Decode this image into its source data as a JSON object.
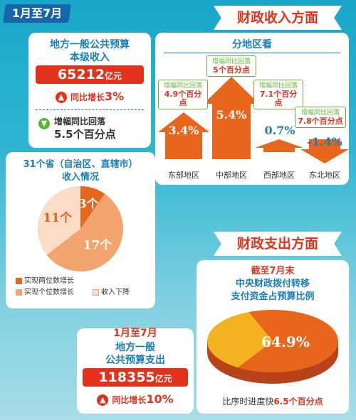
{
  "colors": {
    "accent_red": "#e3321b",
    "accent_blue": "#1a7fb8",
    "green": "#67b43a",
    "orange": "#e8661c"
  },
  "period_tag": "1月至7月",
  "revenue_ribbon": "财政收入方面",
  "local_revenue": {
    "title_line1": "地方一般公共预算",
    "title_line2": "本级收入",
    "amount": "65212",
    "unit": "亿元",
    "growth_label": "同比增长",
    "growth_value": "3%",
    "change_line1": "增幅同比回落",
    "change_line2": "5.5个百分点",
    "up_icon": "up-arrow-icon",
    "down_icon": "down-arrow-icon"
  },
  "regions": {
    "title": "分地区看",
    "items": [
      {
        "name": "东部地区",
        "value": "3.4%",
        "tag1": "增幅同比回落",
        "tag2": "4.9个百分点"
      },
      {
        "name": "中部地区",
        "value": "5.4%",
        "tag1": "增幅同比回落",
        "tag2": "5个百分点"
      },
      {
        "name": "西部地区",
        "value": "0.7%",
        "tag1": "增幅同比回落",
        "tag2": "7.1个百分点"
      },
      {
        "name": "东北地区",
        "value": "-1.4%",
        "tag1": "增幅同比回落",
        "tag2": "7.8个百分点"
      }
    ]
  },
  "provinces": {
    "title_line1": "31个省（自治区、直辖市）",
    "title_line2": "收入情况",
    "slices": [
      {
        "label": "3个",
        "value": 3,
        "color": "#e8661c"
      },
      {
        "label": "17个",
        "value": 17,
        "color": "#f2a56e"
      },
      {
        "label": "11个",
        "value": 11,
        "color": "#fbdcc6"
      }
    ],
    "legend": [
      {
        "label": "实现两位数增长",
        "color": "#e8661c"
      },
      {
        "label": "实现个位数增长",
        "color": "#f2a56e"
      },
      {
        "label": "收入下降",
        "color": "#fbdcc6"
      }
    ]
  },
  "expenditure_ribbon": "财政支出方面",
  "transfer": {
    "subtitle": "截至7月末",
    "title_line1": "中央财政拨付转移",
    "title_line2": "支付资金占预算比例",
    "value": "64.9%",
    "note_prefix": "比序时进度快",
    "note_value": "6.5个百分点"
  },
  "expenditure": {
    "period": "1月至7月",
    "title_line1": "地方一般",
    "title_line2": "公共预算支出",
    "amount": "118355",
    "unit": "亿元",
    "growth_label": "同比增长",
    "growth_value": "10%"
  },
  "chart_data": [
    {
      "type": "bar",
      "title": "分地区看",
      "categories": [
        "东部地区",
        "中部地区",
        "西部地区",
        "东北地区"
      ],
      "values": [
        3.4,
        5.4,
        0.7,
        -1.4
      ]
    },
    {
      "type": "pie",
      "title": "31个省（自治区、直辖市）收入情况",
      "categories": [
        "实现两位数增长",
        "实现个位数增长",
        "收入下降"
      ],
      "values": [
        3,
        17,
        11
      ]
    },
    {
      "type": "pie",
      "title": "中央财政拨付转移支付资金占预算比例",
      "values": [
        64.9,
        35.1
      ]
    }
  ]
}
